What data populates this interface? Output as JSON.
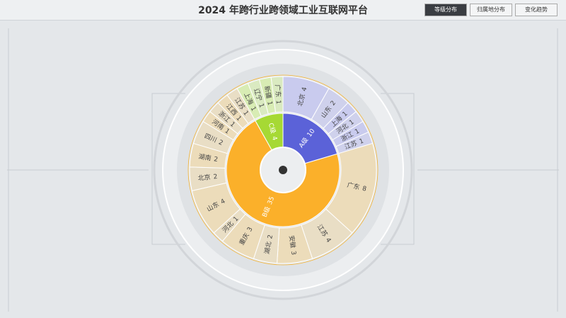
{
  "header": {
    "title": "2024 年跨行业跨领域工业互联网平台",
    "tabs": [
      "等级分布",
      "归属地分布",
      "变化趋势"
    ]
  },
  "chart_data": {
    "type": "sunburst",
    "groups": [
      {
        "name": "A级",
        "value": 10,
        "color": "#5b62d8",
        "child_color": "#c9cbee",
        "children": [
          {
            "name": "北京",
            "value": 4
          },
          {
            "name": "山东",
            "value": 2
          },
          {
            "name": "上海",
            "value": 1
          },
          {
            "name": "河北",
            "value": 1
          },
          {
            "name": "浙江",
            "value": 1
          },
          {
            "name": "江苏",
            "value": 1
          }
        ]
      },
      {
        "name": "B级",
        "value": 35,
        "color": "#fbb02a",
        "child_color": "#ecdcba",
        "children": [
          {
            "name": "广东",
            "value": 8
          },
          {
            "name": "江苏",
            "value": 4
          },
          {
            "name": "安徽",
            "value": 3
          },
          {
            "name": "湖北",
            "value": 2
          },
          {
            "name": "重庆",
            "value": 3
          },
          {
            "name": "河北",
            "value": 1
          },
          {
            "name": "山东",
            "value": 4
          },
          {
            "name": "北京",
            "value": 2
          },
          {
            "name": "湖南",
            "value": 2
          },
          {
            "name": "四川",
            "value": 2
          },
          {
            "name": "河南",
            "value": 1
          },
          {
            "name": "浙江",
            "value": 1
          },
          {
            "name": "江西",
            "value": 1
          },
          {
            "name": "江苏",
            "value": 1
          }
        ]
      },
      {
        "name": "C级",
        "value": 4,
        "color": "#a6d934",
        "child_color": "#d8ecb4",
        "children": [
          {
            "name": "上海",
            "value": 1
          },
          {
            "name": "辽宁",
            "value": 1
          },
          {
            "name": "新疆",
            "value": 1
          },
          {
            "name": "广东",
            "value": 1
          }
        ]
      }
    ]
  }
}
